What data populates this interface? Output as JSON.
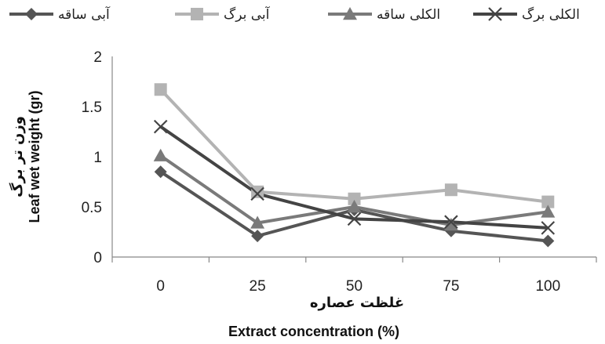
{
  "chart_data": {
    "type": "line",
    "categories": [
      "0",
      "25",
      "50",
      "75",
      "100"
    ],
    "xlabel_fa": "غلظت عصاره",
    "xlabel_en": "Extract concentration (%)",
    "ylabel_fa": "وزن تر برگ",
    "ylabel_en": "Leaf  wet weight (gr)",
    "ylim": [
      0,
      2
    ],
    "yticks": [
      "0",
      "0.5",
      "1",
      "1.5",
      "2"
    ],
    "grid": false,
    "legend_position": "top",
    "series": [
      {
        "name": "آبی ساقه",
        "values": [
          0.85,
          0.21,
          0.47,
          0.26,
          0.16
        ],
        "color": "#555555",
        "marker": "diamond"
      },
      {
        "name": "آبی برگ",
        "values": [
          1.67,
          0.65,
          0.58,
          0.67,
          0.55
        ],
        "color": "#b3b3b3",
        "marker": "square"
      },
      {
        "name": "الکلی ساقه",
        "values": [
          1.01,
          0.34,
          0.5,
          0.32,
          0.45
        ],
        "color": "#7a7a7a",
        "marker": "triangle"
      },
      {
        "name": "الکلی برگ",
        "values": [
          1.3,
          0.63,
          0.38,
          0.35,
          0.29
        ],
        "color": "#444444",
        "marker": "x"
      }
    ]
  }
}
